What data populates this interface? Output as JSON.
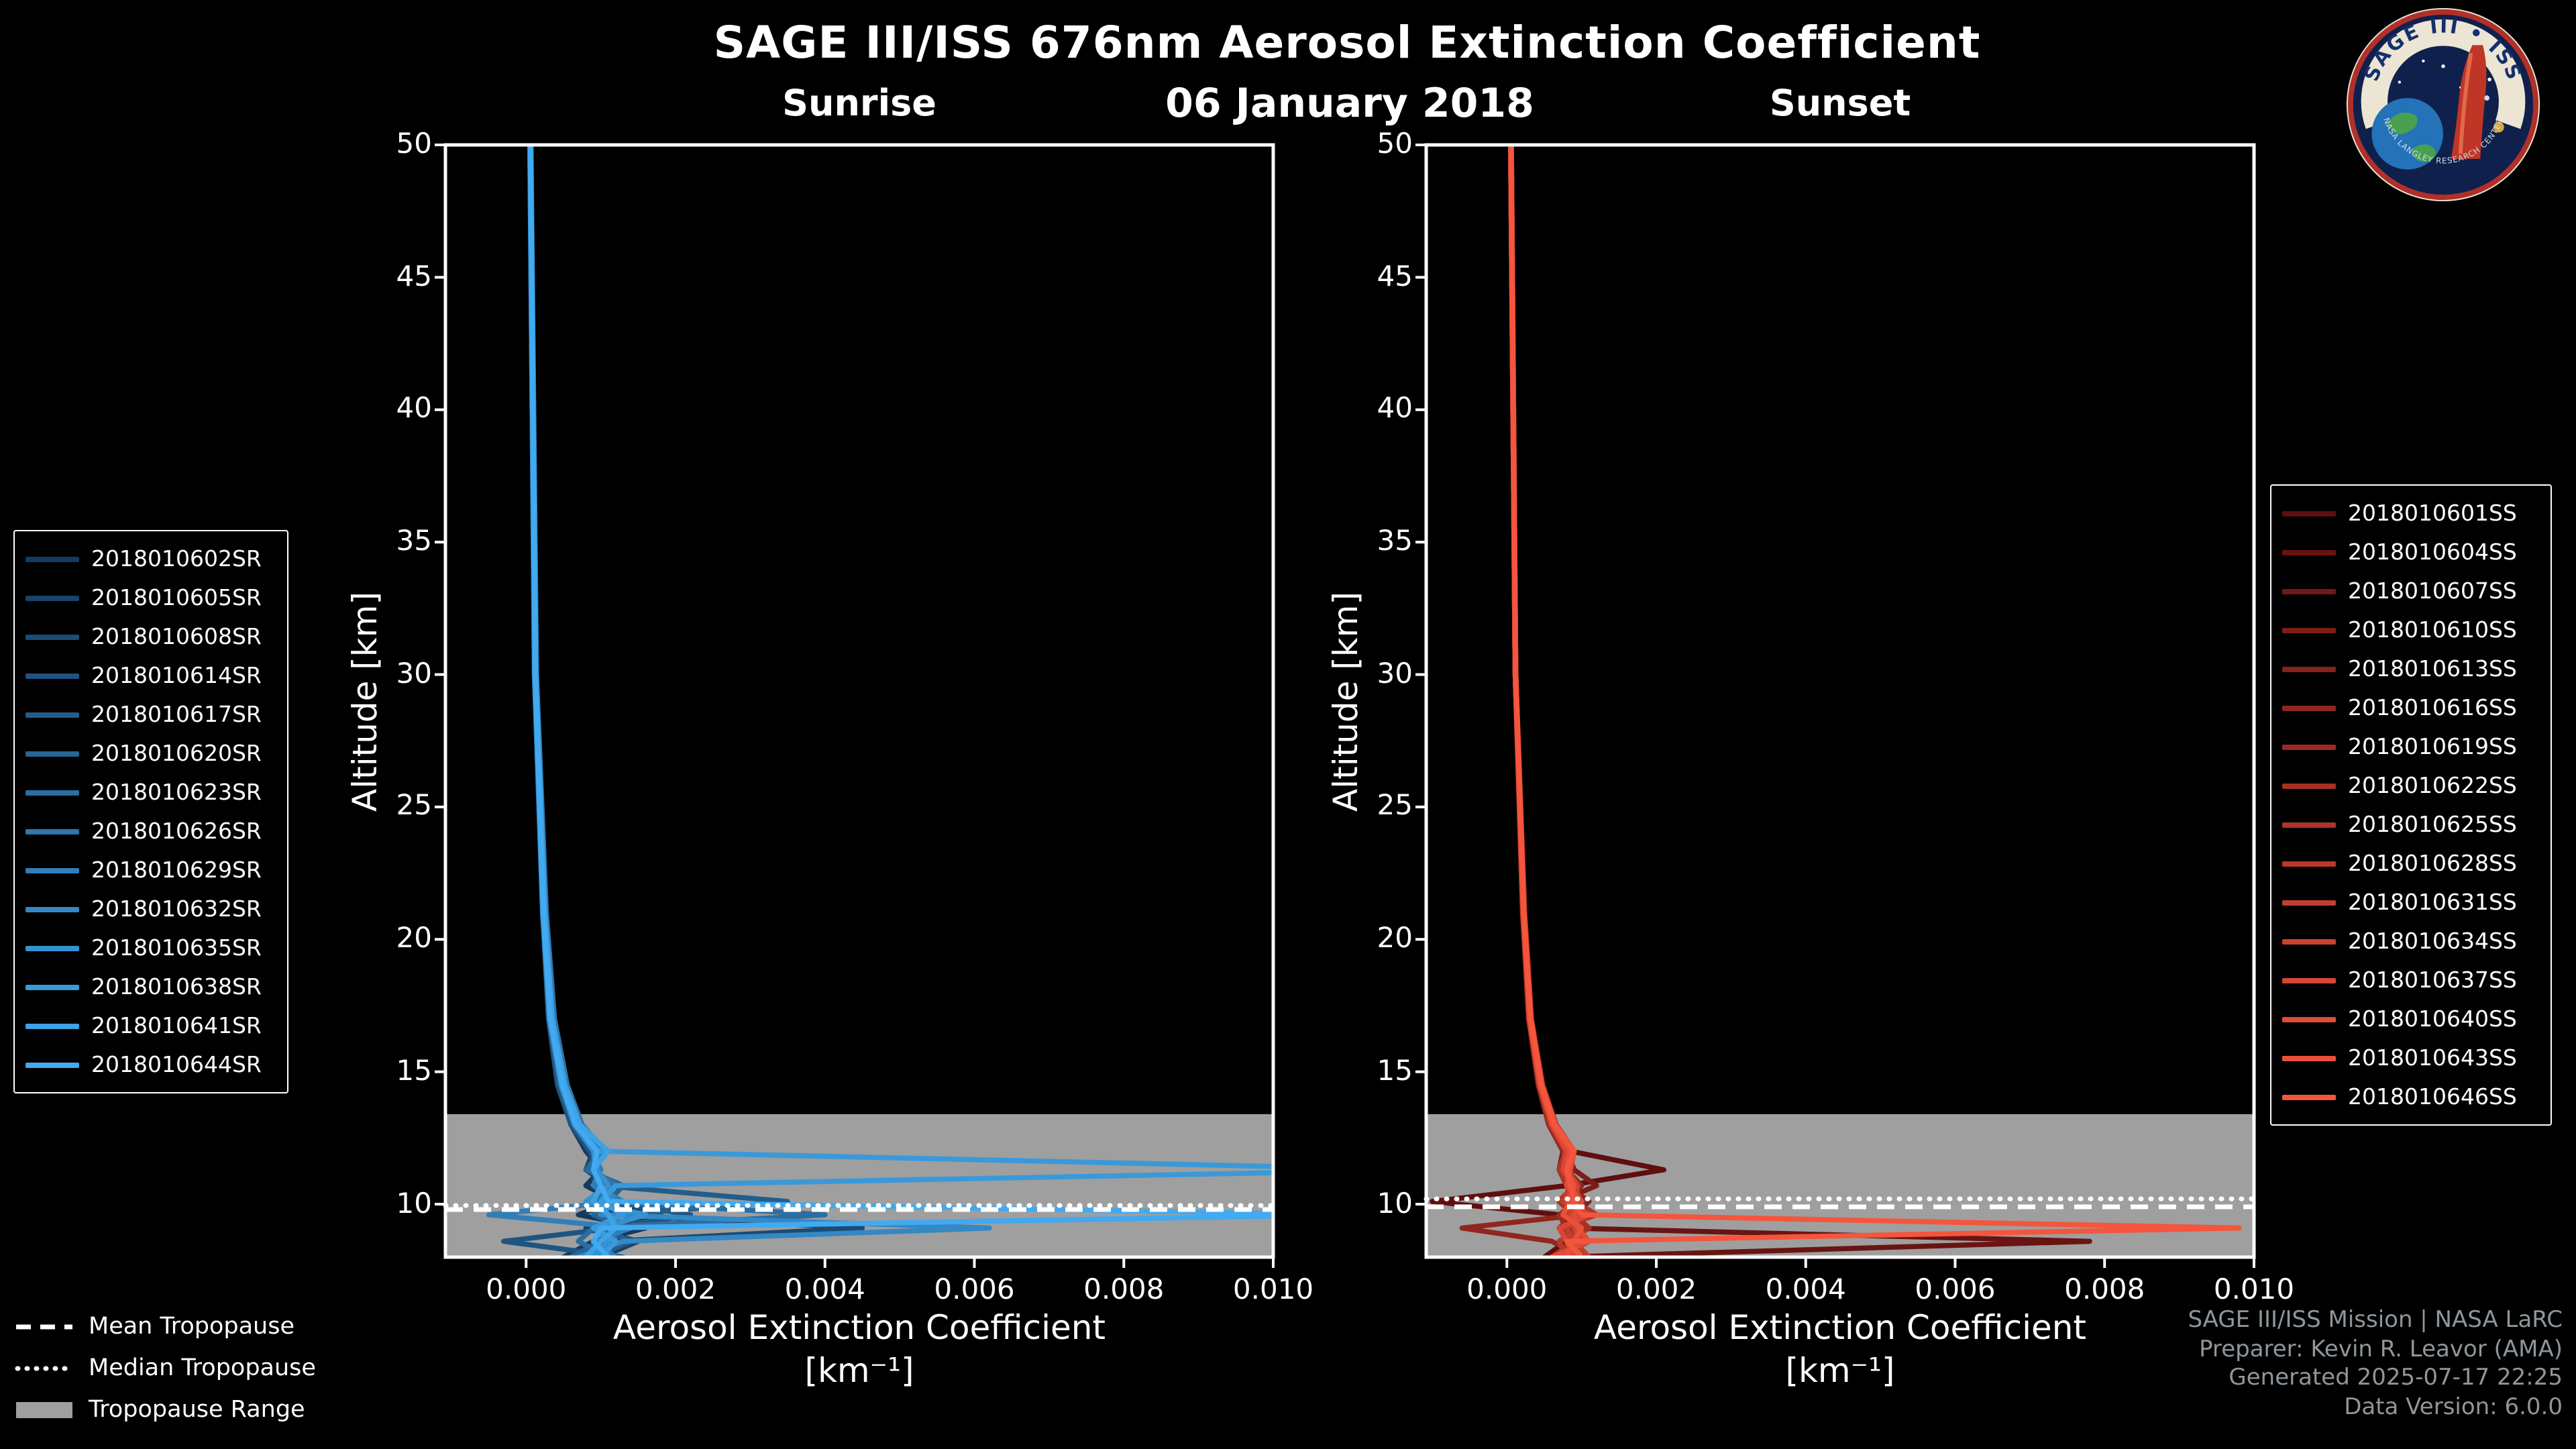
{
  "header": {
    "title": "SAGE III/ISS 676nm Aerosol Extinction Coefficient",
    "date": "06 January 2018"
  },
  "tropopause_legend": {
    "mean": "Mean Tropopause",
    "median": "Median Tropopause",
    "range": "Tropopause Range"
  },
  "credits": {
    "lines": [
      "SAGE III/ISS Mission | NASA LaRC",
      "Preparer: Kevin R. Leavor (AMA)",
      "Generated 2025-07-17 22:25",
      "Data Version: 6.0.0"
    ]
  },
  "logo": {
    "arc_top": "SAGE III • ISS",
    "arc_bottom": "NASA LANGLEY RESEARCH CENTER"
  },
  "chart_data": [
    {
      "type": "line",
      "title": "Sunrise",
      "xlabel": "Aerosol Extinction Coefficient",
      "xlabel_units": "[km⁻¹]",
      "ylabel": "Altitude [km]",
      "xlim": [
        -0.00108,
        0.01
      ],
      "ylim": [
        8,
        50
      ],
      "xticks": [
        0.0,
        0.002,
        0.004,
        0.006,
        0.008,
        0.01
      ],
      "xtick_labels": [
        "0.000",
        "0.002",
        "0.004",
        "0.006",
        "0.008",
        "0.010"
      ],
      "yticks": [
        10,
        15,
        20,
        25,
        30,
        35,
        40,
        45,
        50
      ],
      "grid": false,
      "tropopause": {
        "mean_km": 9.8,
        "median_km": 9.95,
        "range_km": [
          8,
          13.4
        ],
        "band_color": "#9f9f9f"
      },
      "altitudes_km": [
        8,
        8.6,
        9.1,
        9.6,
        10.1,
        10.7,
        11.3,
        12,
        13,
        14.5,
        17,
        21,
        30,
        50
      ],
      "series": [
        {
          "label": "2018010602SR",
          "color": "#163A5E",
          "values": [
            0.0005,
            0.0009,
            0.0016,
            0.0007,
            0.0012,
            0.0008,
            0.001,
            0.0008,
            0.0006,
            0.00045,
            0.0003,
            0.00022,
            0.00011,
            5e-05
          ]
        },
        {
          "label": "2018010605SR",
          "color": "#194369",
          "values": [
            0.001,
            0.0015,
            0.0008,
            0.0018,
            0.0009,
            0.0011,
            0.0008,
            0.0009,
            0.00065,
            0.0005,
            0.00032,
            0.00024,
            0.00012,
            6e-05
          ]
        },
        {
          "label": "2018010608SR",
          "color": "#1C4B75",
          "values": [
            0.0007,
            0.0011,
            0.0045,
            0.0012,
            0.0009,
            0.001,
            0.00085,
            0.00095,
            0.0007,
            0.00048,
            0.00033,
            0.00023,
            0.00012,
            5.5e-05
          ]
        },
        {
          "label": "2018010614SR",
          "color": "#205480",
          "values": [
            0.0013,
            -0.0003,
            0.0012,
            0.0022,
            0.0011,
            0.0009,
            0.00095,
            0.00085,
            0.0006,
            0.00042,
            0.0003,
            0.00022,
            0.00011,
            5e-05
          ]
        },
        {
          "label": "2018010617SR",
          "color": "#235D8B",
          "values": [
            0.0009,
            0.0014,
            0.001,
            0.0012,
            0.0035,
            0.001,
            0.0009,
            0.0009,
            0.00068,
            0.0005,
            0.00034,
            0.00024,
            0.00013,
            6e-05
          ]
        },
        {
          "label": "2018010620SR",
          "color": "#266596",
          "values": [
            0.0006,
            0.001,
            0.0013,
            0.0009,
            0.0011,
            0.0013,
            0.0008,
            0.001,
            0.00072,
            0.00052,
            0.00036,
            0.00026,
            0.00013,
            6e-05
          ]
        },
        {
          "label": "2018010623SR",
          "color": "#2A6EA2",
          "values": [
            0.0011,
            0.0007,
            0.0009,
            0.004,
            0.001,
            0.0011,
            0.00085,
            0.00095,
            0.00066,
            0.00047,
            0.00032,
            0.00023,
            0.00012,
            5.5e-05
          ]
        },
        {
          "label": "2018010626SR",
          "color": "#2D77AD",
          "values": [
            0.0008,
            0.0012,
            0.0011,
            0.0015,
            0.0009,
            0.0012,
            0.0009,
            0.00105,
            0.00075,
            0.00055,
            0.00038,
            0.00027,
            0.00014,
            6.5e-05
          ]
        },
        {
          "label": "2018010629SR",
          "color": "#307FB8",
          "values": [
            0.0012,
            0.0009,
            0.0014,
            -0.0005,
            0.0013,
            0.0009,
            0.001,
            0.0009,
            0.00064,
            0.00046,
            0.00031,
            0.00022,
            0.00011,
            5e-05
          ]
        },
        {
          "label": "2018010632SR",
          "color": "#3488C3",
          "values": [
            0.0007,
            0.0013,
            0.0062,
            0.001,
            0.0012,
            0.001,
            0.0009,
            0.001,
            0.0007,
            0.0005,
            0.00035,
            0.00025,
            0.00012,
            6e-05
          ]
        },
        {
          "label": "2018010635SR",
          "color": "#3791CF",
          "values": [
            0.0009,
            0.0011,
            0.001,
            0.0016,
            0.0008,
            0.0011,
            0.00095,
            0.0009,
            0.00068,
            0.00049,
            0.00033,
            0.00024,
            0.00012,
            5.5e-05
          ]
        },
        {
          "label": "2018010638SR",
          "color": "#3A99DA",
          "values": [
            0.001,
            0.0012,
            0.0009,
            0.0013,
            0.001,
            0.0012,
            0.012,
            0.00095,
            0.0007,
            0.0005,
            0.00034,
            0.00024,
            0.00012,
            6e-05
          ]
        },
        {
          "label": "2018010641SR",
          "color": "#3EA2E5",
          "values": [
            0.0008,
            0.001,
            0.0012,
            0.0011,
            0.0009,
            0.001,
            0.0009,
            0.0011,
            0.00072,
            0.00052,
            0.00035,
            0.00025,
            0.00013,
            6e-05
          ]
        },
        {
          "label": "2018010644SR",
          "color": "#41AAF0",
          "values": [
            0.0011,
            0.0009,
            0.001,
            0.011,
            0.0011,
            0.001,
            0.0009,
            0.00095,
            0.00066,
            0.00048,
            0.00032,
            0.00023,
            0.00012,
            5.5e-05
          ]
        }
      ]
    },
    {
      "type": "line",
      "title": "Sunset",
      "xlabel": "Aerosol Extinction Coefficient",
      "xlabel_units": "[km⁻¹]",
      "ylabel": "Altitude [km]",
      "xlim": [
        -0.00108,
        0.01
      ],
      "ylim": [
        8,
        50
      ],
      "xticks": [
        0.0,
        0.002,
        0.004,
        0.006,
        0.008,
        0.01
      ],
      "xtick_labels": [
        "0.000",
        "0.002",
        "0.004",
        "0.006",
        "0.008",
        "0.010"
      ],
      "yticks": [
        10,
        15,
        20,
        25,
        30,
        35,
        40,
        45,
        50
      ],
      "grid": false,
      "tropopause": {
        "mean_km": 9.9,
        "median_km": 10.2,
        "range_km": [
          8,
          13.4
        ],
        "band_color": "#9f9f9f"
      },
      "altitudes_km": [
        8,
        8.6,
        9.1,
        9.6,
        10.1,
        10.7,
        11.3,
        12,
        13,
        14.5,
        17,
        21,
        30,
        50
      ],
      "series": [
        {
          "label": "2018010601SS",
          "color": "#5F0F0F",
          "values": [
            0.0005,
            0.0008,
            0.0009,
            0.0007,
            -0.001,
            0.0008,
            0.0021,
            0.00085,
            0.0006,
            0.00045,
            0.0003,
            0.00022,
            0.00011,
            5e-05
          ]
        },
        {
          "label": "2018010604SS",
          "color": "#691412",
          "values": [
            0.0007,
            0.0078,
            0.0008,
            0.0009,
            0.0007,
            0.0009,
            0.00075,
            0.0008,
            0.00062,
            0.00046,
            0.00031,
            0.00023,
            0.00012,
            5.5e-05
          ]
        },
        {
          "label": "2018010607SS",
          "color": "#731815",
          "values": [
            0.0009,
            0.0007,
            0.001,
            0.0008,
            0.0009,
            0.0008,
            0.0007,
            0.00075,
            0.00058,
            0.00043,
            0.0003,
            0.00021,
            0.00011,
            5e-05
          ]
        },
        {
          "label": "2018010610SS",
          "color": "#7D1D18",
          "values": [
            0.0006,
            0.001,
            0.0008,
            0.0011,
            0.0007,
            0.0012,
            0.0009,
            0.0008,
            0.0006,
            0.00045,
            0.00031,
            0.00022,
            0.00012,
            5.5e-05
          ]
        },
        {
          "label": "2018010613SS",
          "color": "#87221B",
          "values": [
            0.0008,
            0.0009,
            0.0007,
            0.0009,
            0.0011,
            0.0008,
            0.00075,
            0.00085,
            0.00064,
            0.00047,
            0.00032,
            0.00023,
            0.00012,
            6e-05
          ]
        },
        {
          "label": "2018010616SS",
          "color": "#91261E",
          "values": [
            0.001,
            0.0006,
            -0.0006,
            0.001,
            0.0008,
            0.001,
            0.0008,
            0.00075,
            0.00056,
            0.00042,
            0.00029,
            0.00021,
            0.00011,
            5e-05
          ]
        },
        {
          "label": "2018010619SS",
          "color": "#9B2B21",
          "values": [
            0.0007,
            0.0011,
            0.0008,
            0.0007,
            0.00095,
            0.00085,
            0.0007,
            0.0008,
            0.0006,
            0.00044,
            0.0003,
            0.00022,
            0.00011,
            5.5e-05
          ]
        },
        {
          "label": "2018010622SS",
          "color": "#A43024",
          "values": [
            0.0009,
            0.0008,
            0.0011,
            0.0009,
            0.0007,
            0.0009,
            0.00085,
            0.0009,
            0.00066,
            0.00048,
            0.00033,
            0.00024,
            0.00012,
            6e-05
          ]
        },
        {
          "label": "2018010625SS",
          "color": "#AE3427",
          "values": [
            0.0006,
            0.0009,
            0.0007,
            0.0012,
            0.0009,
            0.0008,
            0.0007,
            0.00078,
            0.00058,
            0.00043,
            0.0003,
            0.00021,
            0.00011,
            5e-05
          ]
        },
        {
          "label": "2018010628SS",
          "color": "#B8392A",
          "values": [
            0.0008,
            0.0007,
            0.001,
            0.0008,
            0.001,
            0.0009,
            0.0008,
            0.00082,
            0.00062,
            0.00046,
            0.00031,
            0.00023,
            0.00012,
            5.5e-05
          ]
        },
        {
          "label": "2018010631SS",
          "color": "#C23E2D",
          "values": [
            0.0011,
            0.0009,
            0.0008,
            0.001,
            0.00075,
            0.00085,
            0.00075,
            0.0008,
            0.0006,
            0.00045,
            0.00031,
            0.00022,
            0.00011,
            5e-05
          ]
        },
        {
          "label": "2018010634SS",
          "color": "#CC4230",
          "values": [
            0.0007,
            0.001,
            0.0009,
            0.00085,
            0.0009,
            0.00095,
            0.0008,
            0.00085,
            0.00063,
            0.00046,
            0.00032,
            0.00023,
            0.00012,
            6e-05
          ]
        },
        {
          "label": "2018010637SS",
          "color": "#D64733",
          "values": [
            0.0009,
            0.0008,
            0.0007,
            0.0011,
            0.0008,
            0.0009,
            0.00075,
            0.0008,
            0.0006,
            0.00044,
            0.0003,
            0.00022,
            0.00011,
            5.5e-05
          ]
        },
        {
          "label": "2018010640SS",
          "color": "#E04C36",
          "values": [
            0.0006,
            0.0011,
            0.00095,
            0.0009,
            0.001,
            0.0008,
            0.00085,
            0.0009,
            0.00065,
            0.00047,
            0.00032,
            0.00023,
            0.00012,
            6e-05
          ]
        },
        {
          "label": "2018010643SS",
          "color": "#EA5039",
          "values": [
            0.0008,
            0.0009,
            0.001,
            0.00075,
            0.00085,
            0.0009,
            0.0008,
            0.00085,
            0.00062,
            0.00045,
            0.00031,
            0.00022,
            0.00011,
            5e-05
          ]
        },
        {
          "label": "2018010646SS",
          "color": "#F4553C",
          "values": [
            0.001,
            0.0008,
            0.0098,
            0.001,
            0.0009,
            0.00085,
            0.0008,
            0.0009,
            0.00064,
            0.00046,
            0.00032,
            0.00023,
            0.00012,
            5.5e-05
          ]
        }
      ]
    }
  ]
}
